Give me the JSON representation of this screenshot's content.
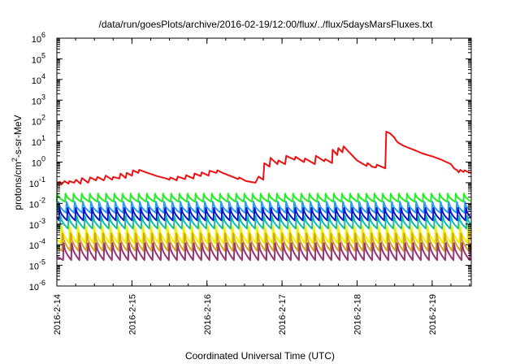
{
  "chart_data": {
    "type": "line",
    "title": "/data/run/goesPlots/archive/2016-02-19/12:00/flux/../flux/5daysMarsFluxes.txt",
    "xlabel": "Coordinated Universal Time (UTC)",
    "ylabel": {
      "pre": "protons/cm",
      "sup": "2",
      "post": "-s-sr-MeV"
    },
    "x_ticks": [
      "2016-2-14",
      "2016-2-15",
      "2016-2-16",
      "2016-2-17",
      "2016-2-18",
      "2016-2-19"
    ],
    "xlim": [
      "2016-02-14T00:00",
      "2016-02-19T12:30"
    ],
    "y_scale": "log",
    "ylim": [
      1e-06,
      1000000.0
    ],
    "y_ticks": [
      {
        "base": "10",
        "exp": "-6"
      },
      {
        "base": "10",
        "exp": "-5"
      },
      {
        "base": "10",
        "exp": "-4"
      },
      {
        "base": "10",
        "exp": "-3"
      },
      {
        "base": "10",
        "exp": "-2"
      },
      {
        "base": "10",
        "exp": "-1"
      },
      {
        "base": "10",
        "exp": "0"
      },
      {
        "base": "10",
        "exp": "1"
      },
      {
        "base": "10",
        "exp": "2"
      },
      {
        "base": "10",
        "exp": "3"
      },
      {
        "base": "10",
        "exp": "4"
      },
      {
        "base": "10",
        "exp": "5"
      },
      {
        "base": "10",
        "exp": "6"
      }
    ],
    "grid": false,
    "legend": "none",
    "series": [
      {
        "color": "#ee1111",
        "points": [
          [
            "2016-02-14T00:00",
            0.1
          ],
          [
            "2016-02-14T01:00",
            0.11
          ],
          [
            "2016-02-14T01:20",
            0.08
          ],
          [
            "2016-02-14T02:30",
            0.12
          ],
          [
            "2016-02-14T03:40",
            0.09
          ],
          [
            "2016-02-14T04:00",
            0.12
          ],
          [
            "2016-02-14T05:30",
            0.1
          ],
          [
            "2016-02-14T06:10",
            0.14
          ],
          [
            "2016-02-14T07:30",
            0.09
          ],
          [
            "2016-02-14T08:00",
            0.17
          ],
          [
            "2016-02-14T10:00",
            0.1
          ],
          [
            "2016-02-14T10:40",
            0.18
          ],
          [
            "2016-02-14T12:30",
            0.13
          ],
          [
            "2016-02-14T13:00",
            0.19
          ],
          [
            "2016-02-14T15:00",
            0.13
          ],
          [
            "2016-02-14T15:40",
            0.22
          ],
          [
            "2016-02-14T17:40",
            0.14
          ],
          [
            "2016-02-14T18:00",
            0.19
          ],
          [
            "2016-02-14T20:00",
            0.16
          ],
          [
            "2016-02-14T20:20",
            0.28
          ],
          [
            "2016-02-14T22:00",
            0.17
          ],
          [
            "2016-02-14T22:20",
            0.3
          ],
          [
            "2016-02-15T00:00",
            0.22
          ],
          [
            "2016-02-15T00:20",
            0.4
          ],
          [
            "2016-02-15T02:00",
            0.3
          ],
          [
            "2016-02-15T02:20",
            0.42
          ],
          [
            "2016-02-15T05:00",
            0.3
          ],
          [
            "2016-02-15T08:00",
            0.21
          ],
          [
            "2016-02-15T11:00",
            0.16
          ],
          [
            "2016-02-15T12:00",
            0.14
          ],
          [
            "2016-02-15T12:20",
            0.18
          ],
          [
            "2016-02-15T14:20",
            0.13
          ],
          [
            "2016-02-15T14:40",
            0.2
          ],
          [
            "2016-02-15T17:00",
            0.15
          ],
          [
            "2016-02-15T17:20",
            0.23
          ],
          [
            "2016-02-15T19:40",
            0.16
          ],
          [
            "2016-02-15T20:00",
            0.28
          ],
          [
            "2016-02-15T22:00",
            0.21
          ],
          [
            "2016-02-15T22:20",
            0.32
          ],
          [
            "2016-02-16T00:30",
            0.22
          ],
          [
            "2016-02-16T00:50",
            0.38
          ],
          [
            "2016-02-16T03:00",
            0.3
          ],
          [
            "2016-02-16T03:20",
            0.4
          ],
          [
            "2016-02-16T05:00",
            0.3
          ],
          [
            "2016-02-16T08:00",
            0.2
          ],
          [
            "2016-02-16T10:00",
            0.15
          ],
          [
            "2016-02-16T10:20",
            0.18
          ],
          [
            "2016-02-16T12:30",
            0.12
          ],
          [
            "2016-02-16T15:30",
            0.1
          ],
          [
            "2016-02-16T16:30",
            0.2
          ],
          [
            "2016-02-16T18:00",
            0.14
          ],
          [
            "2016-02-16T18:20",
            0.9
          ],
          [
            "2016-02-16T20:00",
            0.6
          ],
          [
            "2016-02-16T20:20",
            1.6
          ],
          [
            "2016-02-16T22:30",
            0.8
          ],
          [
            "2016-02-16T22:50",
            1.2
          ],
          [
            "2016-02-17T01:00",
            0.8
          ],
          [
            "2016-02-17T01:20",
            2.0
          ],
          [
            "2016-02-17T04:00",
            1.3
          ],
          [
            "2016-02-17T04:20",
            1.8
          ],
          [
            "2016-02-17T07:00",
            1.0
          ],
          [
            "2016-02-17T07:20",
            1.5
          ],
          [
            "2016-02-17T10:30",
            0.8
          ],
          [
            "2016-02-17T10:50",
            2.0
          ],
          [
            "2016-02-17T13:30",
            1.1
          ],
          [
            "2016-02-17T13:50",
            1.4
          ],
          [
            "2016-02-17T16:00",
            0.9
          ],
          [
            "2016-02-17T16:10",
            4.0
          ],
          [
            "2016-02-17T17:40",
            2.2
          ],
          [
            "2016-02-17T18:00",
            4.8
          ],
          [
            "2016-02-17T19:20",
            3.0
          ],
          [
            "2016-02-17T19:40",
            5.8
          ],
          [
            "2016-02-17T22:00",
            2.5
          ],
          [
            "2016-02-18T00:00",
            1.2
          ],
          [
            "2016-02-18T02:00",
            0.8
          ],
          [
            "2016-02-18T03:00",
            0.65
          ],
          [
            "2016-02-18T03:20",
            0.9
          ],
          [
            "2016-02-18T04:20",
            0.7
          ],
          [
            "2016-02-18T04:40",
            0.6
          ],
          [
            "2016-02-18T06:00",
            0.55
          ],
          [
            "2016-02-18T06:20",
            0.75
          ],
          [
            "2016-02-18T08:20",
            0.55
          ],
          [
            "2016-02-18T09:00",
            0.5
          ],
          [
            "2016-02-18T09:20",
            30.0
          ],
          [
            "2016-02-18T10:30",
            25.0
          ],
          [
            "2016-02-18T12:00",
            15.0
          ],
          [
            "2016-02-18T12:20",
            12.0
          ],
          [
            "2016-02-18T13:00",
            9.0
          ],
          [
            "2016-02-18T15:00",
            6.0
          ],
          [
            "2016-02-18T18:00",
            4.0
          ],
          [
            "2016-02-18T21:00",
            2.6
          ],
          [
            "2016-02-19T00:00",
            1.9
          ],
          [
            "2016-02-19T03:00",
            1.3
          ],
          [
            "2016-02-19T06:00",
            0.8
          ],
          [
            "2016-02-19T07:00",
            0.5
          ],
          [
            "2016-02-19T08:00",
            0.4
          ],
          [
            "2016-02-19T08:30",
            0.32
          ],
          [
            "2016-02-19T09:00",
            0.42
          ],
          [
            "2016-02-19T10:00",
            0.33
          ],
          [
            "2016-02-19T10:20",
            0.4
          ],
          [
            "2016-02-19T11:20",
            0.34
          ],
          [
            "2016-02-19T12:30",
            0.3
          ]
        ]
      },
      {
        "color": "#22ee22",
        "start": "2016-02-14T00:00",
        "period_hours": 2.6,
        "peak": 0.03,
        "trough": 0.012
      },
      {
        "color": "#2a9df4",
        "start": "2016-02-14T00:20",
        "period_hours": 2.6,
        "peak": 0.012,
        "trough": 0.0035
      },
      {
        "color": "#1111cc",
        "start": "2016-02-14T00:40",
        "period_hours": 2.6,
        "peak": 0.006,
        "trough": 0.0015
      },
      {
        "color": "#11bbaa",
        "start": "2016-02-14T01:00",
        "period_hours": 2.6,
        "peak": 0.0025,
        "trough": 0.0006
      },
      {
        "color": "#f0f000",
        "start": "2016-02-14T01:20",
        "period_hours": 2.6,
        "peak": 0.0008,
        "trough": 0.00012
      },
      {
        "color": "#d4a420",
        "start": "2016-02-14T01:40",
        "period_hours": 2.6,
        "peak": 0.00035,
        "trough": 5e-05
      },
      {
        "color": "#993377",
        "start": "2016-02-14T02:00",
        "period_hours": 2.6,
        "peak": 0.00012,
        "trough": 1.8e-05
      }
    ]
  }
}
